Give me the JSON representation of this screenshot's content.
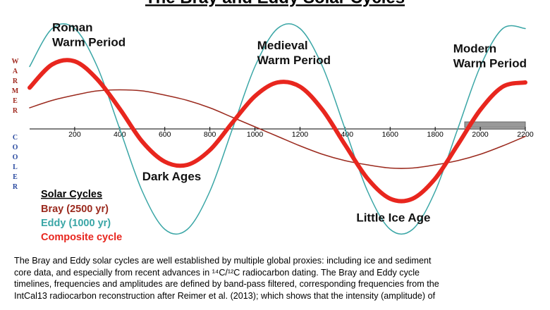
{
  "chart_data": {
    "type": "line",
    "title": "The Bray and Eddy Solar Cycles",
    "x": [
      0,
      100,
      200,
      300,
      400,
      500,
      600,
      700,
      800,
      900,
      1000,
      1100,
      1200,
      1300,
      1400,
      1500,
      1600,
      1700,
      1800,
      1900,
      2000,
      2100,
      2200
    ],
    "xlim": [
      0,
      2200
    ],
    "xticks": [
      200,
      400,
      600,
      800,
      1000,
      1200,
      1400,
      1600,
      1800,
      2000,
      2200
    ],
    "ylim": [
      -1.1,
      1.1
    ],
    "y_axis_labels": {
      "top": "WARMER",
      "bottom": "COOLER"
    },
    "legend_title": "Solar Cycles",
    "series": [
      {
        "name": "Bray (2500 yr)",
        "color": "#9b2a1e",
        "width": 1.5,
        "values": [
          0.2,
          0.27,
          0.32,
          0.36,
          0.37,
          0.36,
          0.32,
          0.27,
          0.2,
          0.11,
          0.02,
          -0.07,
          -0.16,
          -0.24,
          -0.3,
          -0.34,
          -0.37,
          -0.37,
          -0.34,
          -0.3,
          -0.24,
          -0.16,
          -0.07
        ]
      },
      {
        "name": "Eddy (1000 yr)",
        "color": "#3aa6a6",
        "width": 1.5,
        "values": [
          0.59,
          0.95,
          0.95,
          0.59,
          0,
          -0.59,
          -0.95,
          -0.95,
          -0.59,
          0,
          0.59,
          0.95,
          0.95,
          0.59,
          0,
          -0.59,
          -0.95,
          -0.95,
          -0.59,
          0,
          0.59,
          0.95,
          0.95
        ]
      },
      {
        "name": "Composite cycle",
        "color": "#e8261e",
        "width": 6,
        "values": [
          0.39,
          0.61,
          0.64,
          0.47,
          0.19,
          -0.12,
          -0.31,
          -0.34,
          -0.2,
          0.06,
          0.31,
          0.44,
          0.4,
          0.18,
          -0.15,
          -0.47,
          -0.66,
          -0.66,
          -0.47,
          -0.15,
          0.18,
          0.4,
          0.44
        ]
      }
    ],
    "annotations": [
      {
        "lines": [
          "Roman",
          "Warm Period"
        ],
        "x": 100,
        "y": 0.95
      },
      {
        "lines": [
          "Medieval",
          "Warm Period"
        ],
        "x": 1010,
        "y": 0.78
      },
      {
        "lines": [
          "Modern",
          "Warm Period"
        ],
        "x": 1880,
        "y": 0.75
      },
      {
        "lines": [
          "Dark Ages"
        ],
        "x": 500,
        "y": -0.46
      },
      {
        "lines": [
          "Little Ice Age"
        ],
        "x": 1450,
        "y": -0.85
      }
    ],
    "caption": [
      "The Bray and Eddy solar cycles are well established by multiple global proxies: including ice and sediment",
      "core data, and especially from recent advances in ¹⁴C/¹²C radiocarbon dating.  The Bray and Eddy cycle",
      "timelines, frequencies and amplitudes are defined by band-pass filtered, corresponding frequencies from the",
      "IntCal13 radiocarbon reconstruction after Reimer et al. (2013); which shows that the intensity (amplitude) of"
    ]
  }
}
